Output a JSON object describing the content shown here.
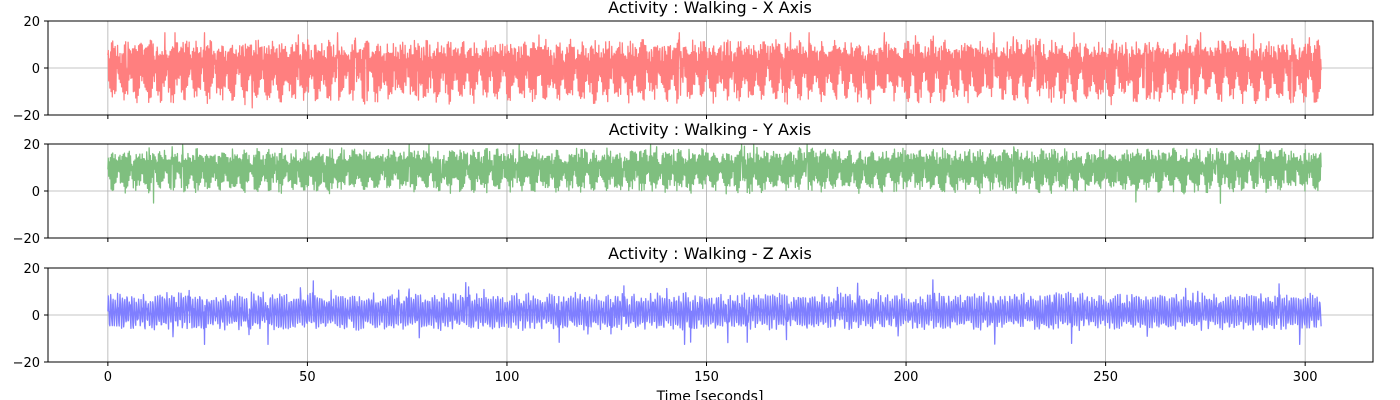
{
  "figure": {
    "xlabel": "Time [seconds]"
  },
  "chart_data": [
    {
      "type": "line",
      "title": "Activity : Walking - X Axis",
      "xlim": [
        -15,
        317
      ],
      "ylim": [
        -20,
        20
      ],
      "x_ticks": [
        0,
        50,
        100,
        150,
        200,
        250,
        300
      ],
      "y_ticks": [
        -20,
        0,
        20
      ],
      "grid": true,
      "color": "#ff7f7f",
      "signal": {
        "x_start": 0,
        "x_end": 304,
        "baseline": 2.5,
        "upper_peak": 10,
        "lower_peak": -11,
        "max": 15,
        "min": -17,
        "step_rate_hz": 3.4
      }
    },
    {
      "type": "line",
      "title": "Activity : Walking - Y Axis",
      "xlim": [
        -15,
        317
      ],
      "ylim": [
        -20,
        20
      ],
      "x_ticks": [
        0,
        50,
        100,
        150,
        200,
        250,
        300
      ],
      "y_ticks": [
        -20,
        0,
        20
      ],
      "grid": true,
      "color": "#7fbf7f",
      "signal": {
        "x_start": 0,
        "x_end": 304,
        "baseline": 10,
        "upper_peak": 17,
        "lower_peak": 2,
        "max": 19.5,
        "min": -6.5,
        "step_rate_hz": 3.4
      }
    },
    {
      "type": "line",
      "title": "Activity : Walking - Z Axis",
      "xlim": [
        -15,
        317
      ],
      "ylim": [
        -20,
        20
      ],
      "x_ticks": [
        0,
        50,
        100,
        150,
        200,
        250,
        300
      ],
      "y_ticks": [
        -20,
        0,
        20
      ],
      "grid": true,
      "color": "#7f7fff",
      "signal": {
        "x_start": 0,
        "x_end": 304,
        "baseline": 0,
        "upper_peak": 9,
        "lower_peak": -4,
        "max": 15.5,
        "min": -12.5,
        "step_rate_hz": 1.7
      }
    }
  ]
}
